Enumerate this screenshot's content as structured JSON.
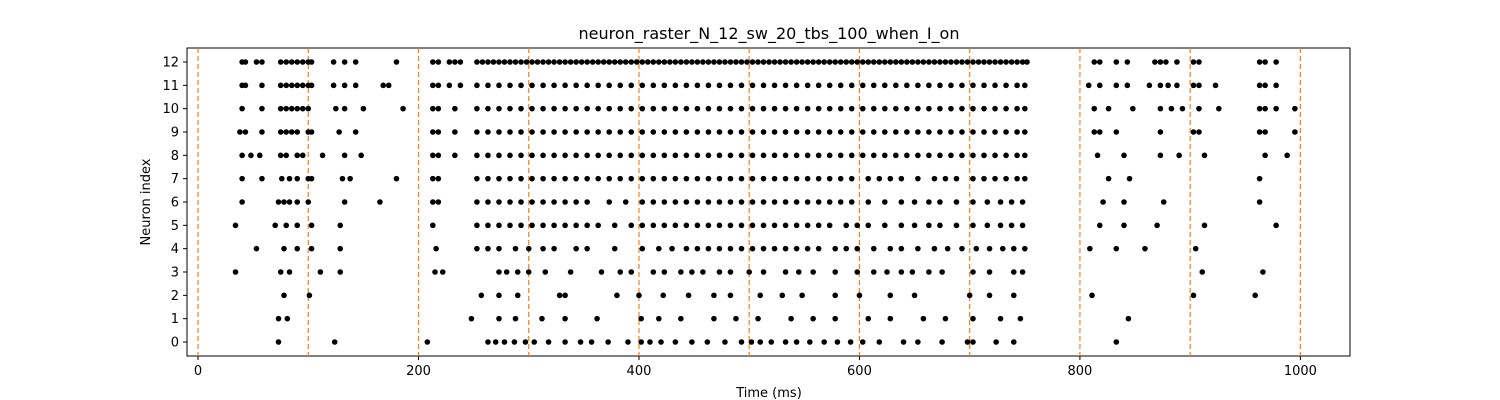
{
  "chart_data": {
    "type": "scatter",
    "title": "neuron_raster_N_12_sw_20_tbs_100_when_I_on",
    "xlabel": "Time (ms)",
    "ylabel": "Neuron index",
    "xlim": [
      -10,
      1045
    ],
    "ylim": [
      -0.6,
      12.6
    ],
    "xticks": [
      0,
      200,
      400,
      600,
      800,
      1000
    ],
    "yticks": [
      0,
      1,
      2,
      3,
      4,
      5,
      6,
      7,
      8,
      9,
      10,
      11,
      12
    ],
    "grid": false,
    "marker_color": "#000000",
    "vline_color": "#ff7f0e",
    "vlines": [
      0,
      100,
      200,
      300,
      400,
      500,
      600,
      700,
      800,
      900,
      1000
    ],
    "series": [
      {
        "spikes": [
          {
            "neuron": 0,
            "times": [
              73,
              124,
              208,
              263,
              270,
              278,
              287,
              297,
              305,
              318,
              333,
              347,
              357,
              372,
              390,
              402,
              410,
              420,
              433,
              448,
              462,
              478,
              493,
              502,
              510,
              520,
              533,
              543,
              555,
              568,
              580,
              592,
              603,
              618,
              640,
              653,
              675,
              698,
              703,
              724,
              740,
              833
            ]
          },
          {
            "neuron": 1,
            "times": [
              73,
              81,
              248,
              273,
              288,
              312,
              333,
              362,
              402,
              418,
              438,
              468,
              488,
              508,
              538,
              558,
              578,
              608,
              628,
              658,
              678,
              703,
              728,
              746,
              844
            ]
          },
          {
            "neuron": 2,
            "times": [
              78,
              101,
              257,
              273,
              290,
              328,
              333,
              380,
              400,
              422,
              445,
              468,
              483,
              510,
              530,
              548,
              578,
              600,
              628,
              650,
              700,
              718,
              740,
              811,
              903,
              959
            ]
          },
          {
            "neuron": 3,
            "times": [
              34,
              75,
              83,
              111,
              129,
              215,
              222,
              273,
              280,
              290,
              300,
              315,
              338,
              366,
              383,
              393,
              413,
              423,
              438,
              448,
              458,
              473,
              483,
              500,
              513,
              533,
              545,
              558,
              578,
              598,
              613,
              625,
              638,
              648,
              663,
              675,
              703,
              718,
              740,
              748,
              911,
              966
            ]
          },
          {
            "neuron": 4,
            "times": [
              53,
              78,
              90,
              103,
              129,
              216,
              253,
              263,
              273,
              288,
              300,
              313,
              323,
              343,
              353,
              378,
              403,
              418,
              430,
              443,
              453,
              463,
              473,
              483,
              493,
              503,
              513,
              523,
              533,
              543,
              553,
              563,
              578,
              588,
              598,
              613,
              628,
              638,
              653,
              668,
              680,
              693,
              706,
              718,
              730,
              740,
              750,
              809,
              833,
              859,
              905
            ]
          },
          {
            "neuron": 5,
            "times": [
              34,
              70,
              80,
              90,
              103,
              129,
              213,
              253,
              263,
              273,
              283,
              293,
              303,
              313,
              323,
              333,
              343,
              353,
              363,
              378,
              393,
              403,
              413,
              423,
              433,
              443,
              453,
              463,
              473,
              483,
              493,
              503,
              513,
              523,
              533,
              543,
              553,
              563,
              573,
              588,
              598,
              608,
              623,
              638,
              650,
              663,
              673,
              688,
              703,
              716,
              728,
              738,
              748,
              818,
              840,
              870,
              913,
              978
            ]
          },
          {
            "neuron": 6,
            "times": [
              40,
              73,
              78,
              83,
              90,
              100,
              133,
              165,
              213,
              218,
              253,
              263,
              273,
              283,
              293,
              303,
              313,
              323,
              333,
              343,
              353,
              373,
              388,
              403,
              413,
              423,
              433,
              443,
              453,
              463,
              473,
              483,
              493,
              503,
              513,
              523,
              533,
              543,
              553,
              563,
              573,
              583,
              593,
              608,
              623,
              638,
              650,
              663,
              673,
              688,
              703,
              716,
              728,
              738,
              748,
              821,
              840,
              876,
              963
            ]
          },
          {
            "neuron": 7,
            "times": [
              40,
              58,
              76,
              83,
              90,
              100,
              103,
              131,
              138,
              180,
              213,
              218,
              253,
              263,
              273,
              283,
              293,
              303,
              313,
              323,
              333,
              343,
              353,
              363,
              373,
              383,
              393,
              403,
              413,
              423,
              433,
              443,
              453,
              463,
              473,
              483,
              493,
              503,
              513,
              523,
              533,
              543,
              553,
              563,
              573,
              583,
              593,
              608,
              618,
              628,
              638,
              653,
              668,
              678,
              688,
              703,
              713,
              723,
              733,
              743,
              750,
              826,
              845,
              963
            ]
          },
          {
            "neuron": 8,
            "times": [
              40,
              48,
              56,
              75,
              80,
              90,
              95,
              113,
              133,
              148,
              213,
              218,
              233,
              253,
              263,
              273,
              283,
              293,
              303,
              313,
              323,
              333,
              343,
              353,
              363,
              373,
              383,
              393,
              403,
              413,
              423,
              433,
              443,
              453,
              463,
              473,
              483,
              493,
              503,
              513,
              523,
              533,
              543,
              553,
              563,
              573,
              583,
              593,
              603,
              613,
              623,
              633,
              643,
              653,
              663,
              673,
              683,
              693,
              703,
              713,
              723,
              733,
              743,
              750,
              816,
              840,
              873,
              890,
              913,
              968,
              988
            ]
          },
          {
            "neuron": 9,
            "times": [
              38,
              43,
              58,
              75,
              80,
              85,
              90,
              100,
              103,
              128,
              143,
              213,
              218,
              233,
              253,
              263,
              273,
              283,
              293,
              303,
              313,
              323,
              333,
              343,
              353,
              363,
              373,
              383,
              393,
              403,
              413,
              423,
              433,
              443,
              453,
              463,
              473,
              483,
              493,
              503,
              513,
              523,
              533,
              543,
              553,
              563,
              573,
              583,
              593,
              603,
              613,
              623,
              633,
              643,
              653,
              663,
              673,
              683,
              693,
              703,
              713,
              723,
              733,
              743,
              750,
              813,
              818,
              833,
              873,
              903,
              908,
              963,
              968,
              995
            ]
          },
          {
            "neuron": 10,
            "times": [
              40,
              58,
              75,
              80,
              85,
              90,
              95,
              100,
              125,
              133,
              150,
              186,
              213,
              218,
              233,
              253,
              263,
              273,
              283,
              293,
              303,
              313,
              323,
              333,
              343,
              353,
              363,
              373,
              383,
              393,
              403,
              413,
              423,
              433,
              443,
              453,
              463,
              473,
              483,
              493,
              503,
              513,
              523,
              533,
              543,
              553,
              563,
              573,
              583,
              593,
              603,
              613,
              623,
              633,
              643,
              653,
              663,
              673,
              683,
              693,
              703,
              713,
              723,
              733,
              743,
              750,
              813,
              826,
              848,
              873,
              883,
              893,
              908,
              926,
              963,
              968,
              978,
              995
            ]
          },
          {
            "neuron": 11,
            "times": [
              40,
              43,
              58,
              75,
              80,
              85,
              90,
              95,
              100,
              103,
              123,
              133,
              143,
              168,
              173,
              213,
              218,
              228,
              238,
              253,
              263,
              273,
              283,
              293,
              303,
              313,
              323,
              333,
              343,
              353,
              363,
              373,
              383,
              393,
              403,
              413,
              423,
              433,
              443,
              453,
              463,
              473,
              483,
              493,
              503,
              513,
              523,
              533,
              543,
              553,
              563,
              573,
              583,
              593,
              603,
              613,
              623,
              633,
              643,
              653,
              663,
              673,
              683,
              693,
              703,
              713,
              723,
              733,
              743,
              750,
              808,
              818,
              833,
              843,
              863,
              873,
              880,
              888,
              903,
              908,
              923,
              963,
              968,
              978
            ]
          },
          {
            "neuron": 12,
            "times": [
              40,
              43,
              53,
              58,
              75,
              80,
              85,
              90,
              95,
              100,
              103,
              123,
              133,
              143,
              180,
              213,
              218,
              228,
              233,
              238,
              253,
              258,
              263,
              268,
              273,
              278,
              283,
              288,
              293,
              298,
              303,
              308,
              313,
              318,
              323,
              328,
              333,
              338,
              343,
              348,
              353,
              358,
              363,
              368,
              373,
              378,
              383,
              388,
              393,
              398,
              403,
              408,
              413,
              418,
              423,
              428,
              433,
              438,
              443,
              448,
              453,
              458,
              463,
              468,
              473,
              478,
              483,
              488,
              493,
              498,
              503,
              508,
              513,
              518,
              523,
              528,
              533,
              538,
              543,
              548,
              553,
              558,
              563,
              568,
              573,
              578,
              583,
              588,
              593,
              598,
              603,
              608,
              613,
              618,
              623,
              628,
              633,
              638,
              643,
              648,
              653,
              658,
              663,
              668,
              673,
              678,
              683,
              688,
              693,
              698,
              703,
              708,
              713,
              718,
              723,
              728,
              733,
              738,
              743,
              748,
              752,
              813,
              818,
              833,
              843,
              868,
              873,
              878,
              888,
              903,
              908,
              963,
              968,
              978
            ]
          }
        ]
      }
    ]
  }
}
